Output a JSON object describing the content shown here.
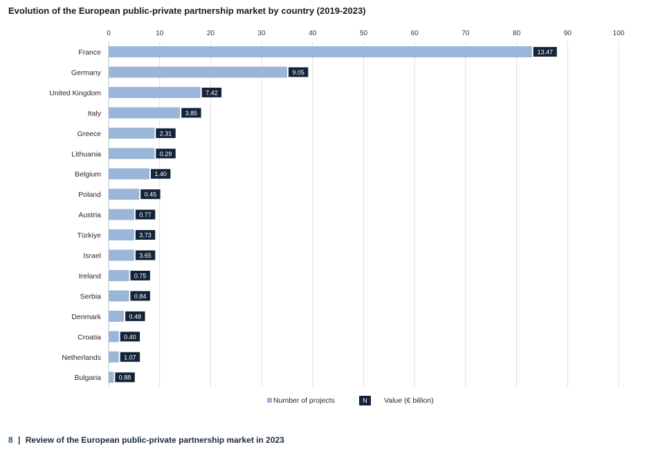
{
  "chart_data": {
    "type": "bar",
    "orientation": "horizontal",
    "title": "Evolution of the European public-private partnership market by country (2019-2023)",
    "xlim": [
      0,
      100
    ],
    "xticks": [
      0,
      10,
      20,
      30,
      40,
      50,
      60,
      70,
      80,
      90,
      100
    ],
    "grid": true,
    "legend_position": "bottom",
    "categories": [
      "France",
      "Germany",
      "United Kingdom",
      "Italy",
      "Greece",
      "Lithuania",
      "Belgium",
      "Poland",
      "Austria",
      "Türkiye",
      "Israel",
      "Ireland",
      "Serbia",
      "Denmark",
      "Croatia",
      "Netherlands",
      "Bulgaria"
    ],
    "series": [
      {
        "name": "Number of projects",
        "color": "#9bb5d8",
        "values": [
          83,
          35,
          18,
          14,
          9,
          9,
          8,
          6,
          5,
          5,
          5,
          4,
          4,
          3,
          2,
          2,
          1
        ]
      },
      {
        "name": "Value (€ billion)",
        "color": "#14233a",
        "values": [
          13.47,
          9.05,
          7.42,
          3.85,
          2.31,
          0.29,
          1.4,
          0.45,
          0.77,
          3.73,
          3.65,
          0.75,
          0.84,
          0.48,
          0.4,
          1.07,
          0.88
        ],
        "labels": [
          "13.47",
          "9.05",
          "7.42",
          "3.85",
          "2.31",
          "0.29",
          "1.40",
          "0.45",
          "0.77",
          "3.73",
          "3.65",
          "0.75",
          "0.84",
          "0.48",
          "0.40",
          "1.07",
          "0.88"
        ]
      }
    ],
    "legend": {
      "swatch_symbol": "N"
    }
  },
  "footer": {
    "page_number": "8",
    "separator": "|",
    "text": "Review of the European public-private partnership market in 2023"
  }
}
